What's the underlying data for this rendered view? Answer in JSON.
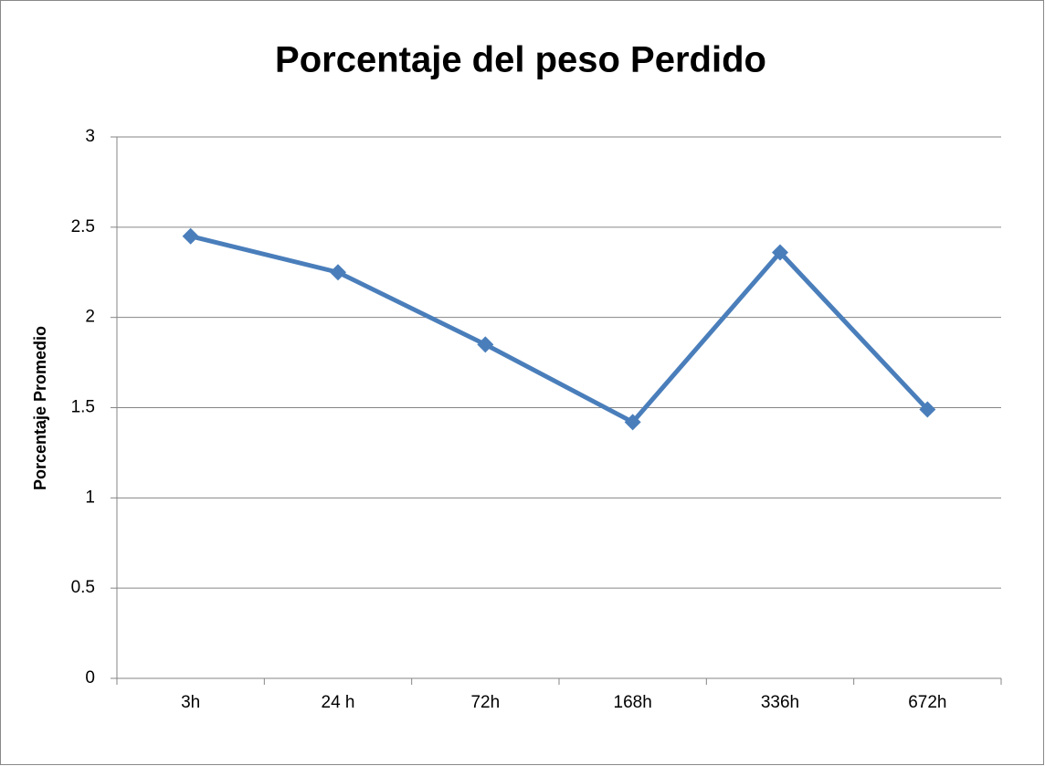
{
  "chart_data": {
    "type": "line",
    "title": "Porcentaje del peso Perdido",
    "y_label": "Porcentaje Promedio",
    "categories": [
      "3h",
      "24 h",
      "72h",
      "168h",
      "336h",
      "672h"
    ],
    "values": [
      2.45,
      2.25,
      1.85,
      1.42,
      2.36,
      1.49
    ],
    "color": "#4a7ebb",
    "ylim": [
      0,
      3
    ],
    "yticks": [
      0,
      0.5,
      1,
      1.5,
      2,
      2.5,
      3
    ],
    "grid": true
  }
}
